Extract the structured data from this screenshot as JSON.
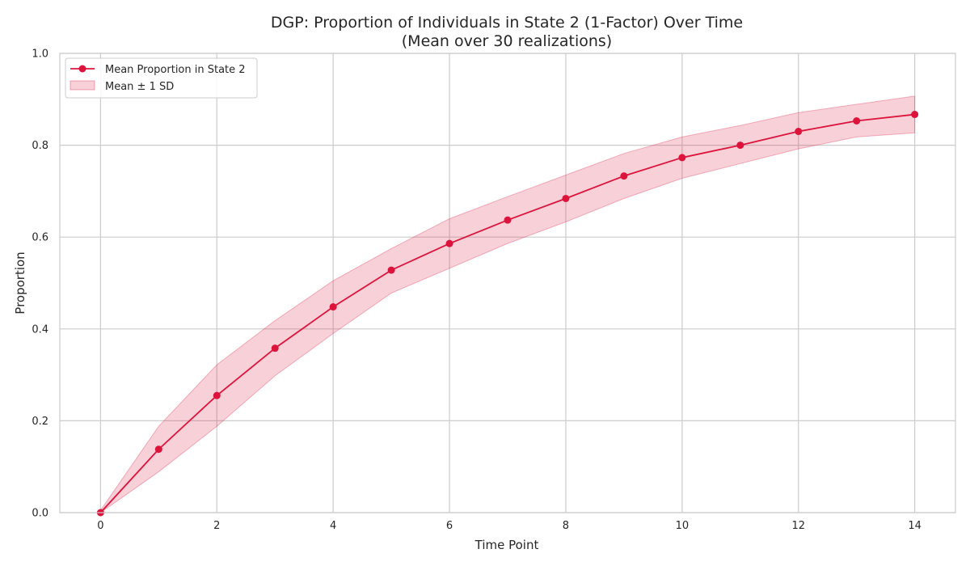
{
  "chart_data": {
    "type": "line",
    "title": "DGP: Proportion of Individuals in State 2 (1-Factor) Over Time",
    "subtitle": "(Mean over 30 realizations)",
    "xlabel": "Time Point",
    "ylabel": "Proportion",
    "xlim": [
      -0.7,
      14.7
    ],
    "ylim": [
      0.0,
      1.0
    ],
    "xticks": [
      0,
      2,
      4,
      6,
      8,
      10,
      12,
      14
    ],
    "xtick_labels": [
      "0",
      "2",
      "4",
      "6",
      "8",
      "10",
      "12",
      "14"
    ],
    "yticks": [
      0.0,
      0.2,
      0.4,
      0.6,
      0.8,
      1.0
    ],
    "ytick_labels": [
      "0.0",
      "0.2",
      "0.4",
      "0.6",
      "0.8",
      "1.0"
    ],
    "grid": true,
    "legend_position": "top-left",
    "x": [
      0,
      1,
      2,
      3,
      4,
      5,
      6,
      7,
      8,
      9,
      10,
      11,
      12,
      13,
      14
    ],
    "series": [
      {
        "name": "Mean Proportion in State 2",
        "color": "#dc143c",
        "marker": "circle",
        "values": [
          0.0,
          0.138,
          0.255,
          0.358,
          0.448,
          0.528,
          0.586,
          0.637,
          0.684,
          0.733,
          0.773,
          0.8,
          0.83,
          0.853,
          0.867
        ]
      }
    ],
    "band": {
      "name": "Mean ± 1 SD",
      "color": "#dc143c",
      "upper": [
        0.005,
        0.188,
        0.322,
        0.418,
        0.505,
        0.575,
        0.64,
        0.688,
        0.735,
        0.782,
        0.818,
        0.843,
        0.871,
        0.889,
        0.907
      ],
      "lower": [
        0.0,
        0.089,
        0.188,
        0.298,
        0.39,
        0.478,
        0.532,
        0.586,
        0.633,
        0.684,
        0.728,
        0.76,
        0.792,
        0.818,
        0.827
      ]
    }
  }
}
